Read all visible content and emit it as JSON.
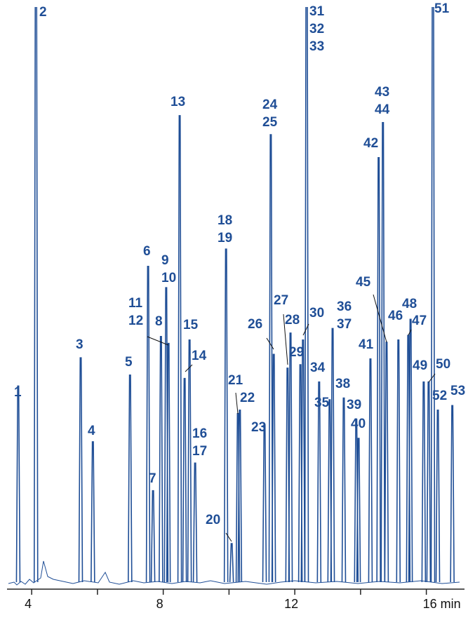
{
  "chart_data": {
    "type": "chromatogram",
    "color": "#1f4e96",
    "xlim": [
      3.25,
      17.16
    ],
    "ylim": [
      0,
      100
    ],
    "xticks": [
      4,
      8,
      12,
      {
        "value": 16,
        "label": "16 min"
      }
    ],
    "minor_xticks": [
      6,
      10,
      14
    ],
    "peaks": [
      {
        "labels": [
          "1"
        ],
        "time": 3.59,
        "height": 34.1
      },
      {
        "labels": [
          "2"
        ],
        "time": 4.13,
        "height": 120
      },
      {
        "labels": [
          "3"
        ],
        "time": 5.49,
        "height": 39
      },
      {
        "labels": [
          "4"
        ],
        "time": 5.86,
        "height": 24.4
      },
      {
        "labels": [
          "5"
        ],
        "time": 6.99,
        "height": 36
      },
      {
        "labels": [
          "6"
        ],
        "time": 7.54,
        "height": 54.9
      },
      {
        "labels": [
          "7"
        ],
        "time": 7.69,
        "height": 15.9
      },
      {
        "labels": [
          "8"
        ],
        "time": 7.93,
        "height": 42.7
      },
      {
        "labels": [
          "9",
          "10"
        ],
        "time": 8.09,
        "height": 51.2
      },
      {
        "labels": [
          "11",
          "12"
        ],
        "time": 8.16,
        "height": 41.5
      },
      {
        "labels": [
          "13"
        ],
        "time": 8.5,
        "height": 81.1
      },
      {
        "labels": [
          "14"
        ],
        "time": 8.65,
        "height": 35.4
      },
      {
        "labels": [
          "15"
        ],
        "time": 8.8,
        "height": 42.1
      },
      {
        "labels": [
          "16",
          "17"
        ],
        "time": 8.97,
        "height": 20.7
      },
      {
        "labels": [
          "18",
          "19"
        ],
        "time": 9.91,
        "height": 57.9
      },
      {
        "labels": [
          "20"
        ],
        "time": 10.08,
        "height": 6.7
      },
      {
        "labels": [
          "21"
        ],
        "time": 10.27,
        "height": 29.3
      },
      {
        "labels": [
          "22"
        ],
        "time": 10.33,
        "height": 29.9
      },
      {
        "labels": [
          "23"
        ],
        "time": 11.08,
        "height": 27.4
      },
      {
        "labels": [
          "24",
          "25"
        ],
        "time": 11.27,
        "height": 77.8
      },
      {
        "labels": [
          "26"
        ],
        "time": 11.36,
        "height": 39.6
      },
      {
        "labels": [
          "27"
        ],
        "time": 11.78,
        "height": 37.2
      },
      {
        "labels": [
          "28"
        ],
        "time": 11.87,
        "height": 43.3
      },
      {
        "labels": [
          "29"
        ],
        "time": 12.17,
        "height": 37.8
      },
      {
        "labels": [
          "30"
        ],
        "time": 12.25,
        "height": 42.1
      },
      {
        "labels": [
          "31",
          "32",
          "33"
        ],
        "time": 12.36,
        "height": 120
      },
      {
        "labels": [
          "34"
        ],
        "time": 12.74,
        "height": 34.8
      },
      {
        "labels": [
          "35"
        ],
        "time": 13.06,
        "height": 31.7
      },
      {
        "labels": [
          "36",
          "37"
        ],
        "time": 13.15,
        "height": 44.1
      },
      {
        "labels": [
          "38"
        ],
        "time": 13.49,
        "height": 32
      },
      {
        "labels": [
          "39"
        ],
        "time": 13.87,
        "height": 28.3
      },
      {
        "labels": [
          "40"
        ],
        "time": 13.94,
        "height": 25
      },
      {
        "labels": [
          "41"
        ],
        "time": 14.3,
        "height": 38.8
      },
      {
        "labels": [
          "42"
        ],
        "time": 14.55,
        "height": 73.8
      },
      {
        "labels": [
          "43",
          "44"
        ],
        "time": 14.68,
        "height": 79.9
      },
      {
        "labels": [
          "45"
        ],
        "time": 14.79,
        "height": 41.7
      },
      {
        "labels": [
          "46"
        ],
        "time": 15.15,
        "height": 42.1
      },
      {
        "labels": [
          "47"
        ],
        "time": 15.45,
        "height": 42.9
      },
      {
        "labels": [
          "48"
        ],
        "time": 15.52,
        "height": 45.7
      },
      {
        "labels": [
          "49"
        ],
        "time": 15.92,
        "height": 34.8
      },
      {
        "labels": [
          "50"
        ],
        "time": 16.07,
        "height": 34.8
      },
      {
        "labels": [
          "51"
        ],
        "time": 16.2,
        "height": 120
      },
      {
        "labels": [
          "52"
        ],
        "time": 16.35,
        "height": 29.9
      },
      {
        "labels": [
          "53"
        ],
        "time": 16.79,
        "height": 30.7
      }
    ]
  }
}
